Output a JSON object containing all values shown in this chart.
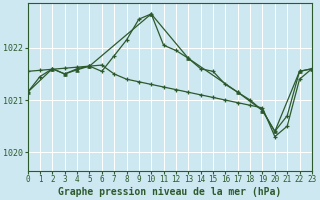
{
  "title": "Graphe pression niveau de la mer (hPa)",
  "background_color": "#cde8f0",
  "grid_color": "#ffffff",
  "line_color": "#2d5a2d",
  "xlim": [
    0,
    23
  ],
  "ylim": [
    1019.65,
    1022.85
  ],
  "yticks": [
    1020,
    1021,
    1022
  ],
  "xticks": [
    0,
    1,
    2,
    3,
    4,
    5,
    6,
    7,
    8,
    9,
    10,
    11,
    12,
    13,
    14,
    15,
    16,
    17,
    18,
    19,
    20,
    21,
    22,
    23
  ],
  "series1_x": [
    0,
    1,
    2,
    3,
    4,
    5,
    6,
    7,
    8,
    9,
    10,
    11,
    12,
    13,
    14,
    15,
    16,
    17,
    18,
    19,
    20,
    21,
    22,
    23
  ],
  "series1_y": [
    1021.15,
    1021.45,
    1021.6,
    1021.5,
    1021.6,
    1021.65,
    1021.55,
    1021.85,
    1022.15,
    1022.55,
    1022.65,
    1022.05,
    1021.95,
    1021.8,
    1021.6,
    1021.55,
    1021.3,
    1021.15,
    1021.0,
    1020.8,
    1020.4,
    1020.7,
    1021.55,
    1021.6
  ],
  "series2_x": [
    0,
    1,
    2,
    3,
    4,
    5,
    6,
    7,
    8,
    9,
    10,
    11,
    12,
    13,
    14,
    15,
    16,
    17,
    18,
    19,
    20,
    21,
    22,
    23
  ],
  "series2_y": [
    1021.55,
    1021.57,
    1021.59,
    1021.61,
    1021.63,
    1021.65,
    1021.67,
    1021.5,
    1021.4,
    1021.35,
    1021.3,
    1021.25,
    1021.2,
    1021.15,
    1021.1,
    1021.05,
    1021.0,
    1020.95,
    1020.9,
    1020.85,
    1020.3,
    1020.5,
    1021.4,
    1021.6
  ],
  "series3_x": [
    0,
    2,
    3,
    4,
    5,
    10,
    13,
    17,
    19,
    20,
    22,
    23
  ],
  "series3_y": [
    1021.15,
    1021.6,
    1021.5,
    1021.58,
    1021.65,
    1022.65,
    1021.8,
    1021.15,
    1020.8,
    1020.4,
    1021.55,
    1021.6
  ],
  "title_fontsize": 7,
  "tick_fontsize": 5.5
}
